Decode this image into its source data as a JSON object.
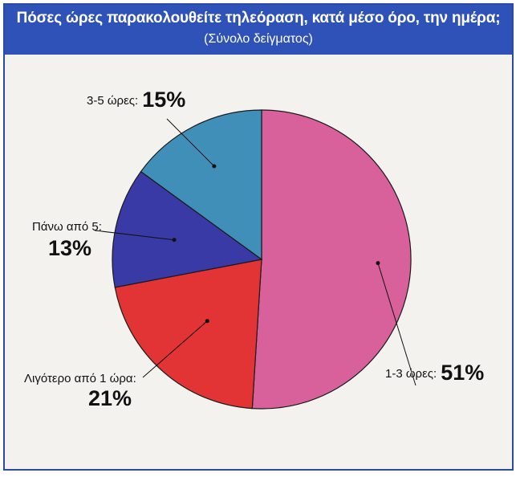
{
  "chart_data": {
    "type": "pie",
    "title": "Πόσες ώρες παρακολουθείτε τηλεόραση, κατά  μέσο όρο, την ημέρα;",
    "subtitle": "(Σύνολο δείγματος)",
    "slices": [
      {
        "label": "1-3 ώρες:",
        "value": 51,
        "value_label": "51%",
        "color": "#d9619b"
      },
      {
        "label": "Λιγότερο από 1 ώρα:",
        "value": 21,
        "value_label": "21%",
        "color": "#e23434"
      },
      {
        "label": "Πάνω από 5:",
        "value": 13,
        "value_label": "13%",
        "color": "#3a3aa6"
      },
      {
        "label": "3-5 ώρες:",
        "value": 15,
        "value_label": "15%",
        "color": "#3f8fb8"
      }
    ],
    "start": "12 o'clock",
    "direction": "clockwise"
  },
  "colors": {
    "header_bg": "#2f52b8",
    "frame_border": "#2b4aa3",
    "background": "#f3f2ef"
  }
}
